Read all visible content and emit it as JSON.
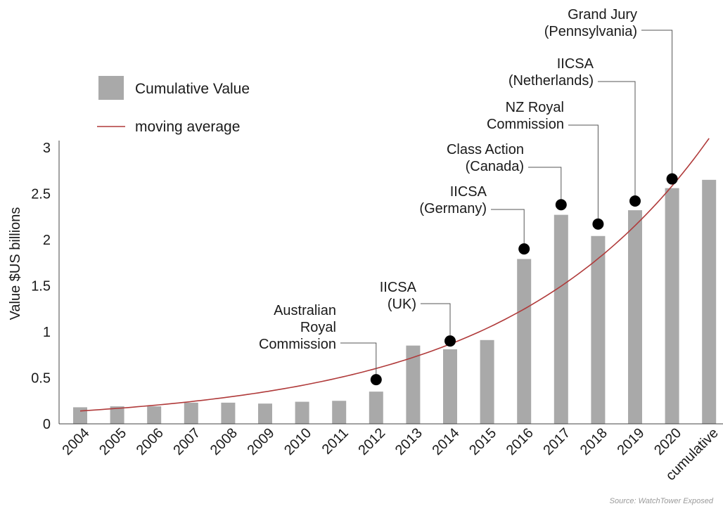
{
  "chart_data": {
    "type": "bar",
    "categories": [
      "2004",
      "2005",
      "2006",
      "2007",
      "2008",
      "2009",
      "2010",
      "2011",
      "2012",
      "2013",
      "2014",
      "2015",
      "2016",
      "2017",
      "2018",
      "2019",
      "2020",
      "cumulative"
    ],
    "series": [
      {
        "name": "Cumulative Value",
        "values": [
          0.18,
          0.19,
          0.19,
          0.23,
          0.23,
          0.22,
          0.24,
          0.25,
          0.35,
          0.85,
          0.81,
          0.91,
          1.79,
          2.27,
          2.04,
          2.32,
          2.56,
          2.65
        ],
        "color": "#a9a9a9"
      }
    ],
    "moving_average": {
      "name": "moving average",
      "x_start": "2004",
      "y_start": 0.14,
      "x_end": "cumulative",
      "y_end": 3.1,
      "color": "#b03a3a"
    },
    "events": [
      {
        "category": "2012",
        "value": 0.48,
        "label": [
          "Australian",
          "Royal",
          "Commission"
        ]
      },
      {
        "category": "2014",
        "value": 0.9,
        "label": [
          "IICSA",
          "(UK)"
        ]
      },
      {
        "category": "2016",
        "value": 1.9,
        "label": [
          "IICSA",
          "(Germany)"
        ]
      },
      {
        "category": "2017",
        "value": 2.38,
        "label": [
          "Class Action",
          "(Canada)"
        ]
      },
      {
        "category": "2018",
        "value": 2.17,
        "label": [
          "NZ Royal",
          "Commission"
        ]
      },
      {
        "category": "2019",
        "value": 2.42,
        "label": [
          "IICSA",
          "(Netherlands)"
        ]
      },
      {
        "category": "2020",
        "value": 2.66,
        "label": [
          "Grand Jury",
          "(Pennsylvania)"
        ]
      }
    ],
    "ylabel": "Value $US billions",
    "xlabel": "",
    "ylim": [
      0,
      3
    ],
    "yticks": [
      0,
      0.5,
      1,
      1.5,
      2,
      2.5,
      3
    ],
    "ytick_labels": [
      "0",
      "0.5",
      "1",
      "1.5",
      "2",
      "2.5",
      "3"
    ],
    "grid": false,
    "legend_position": "top-left",
    "source": "Source: WatchTower Exposed"
  }
}
